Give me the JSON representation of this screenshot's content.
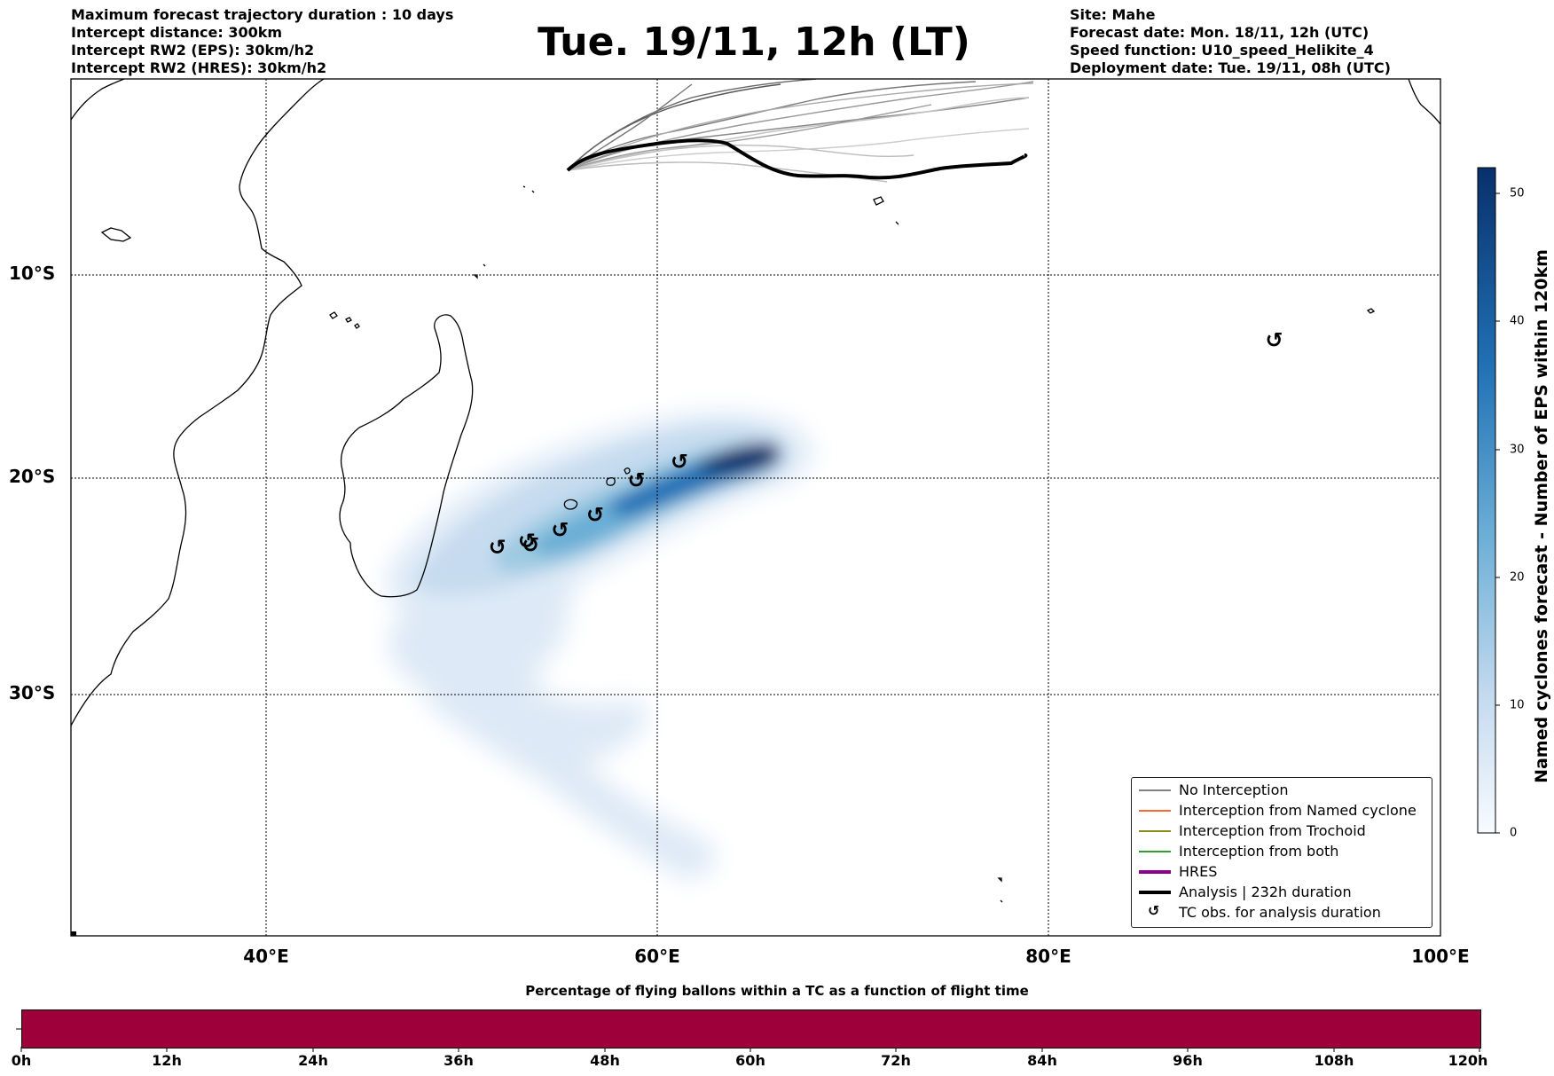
{
  "header_left": [
    "Maximum forecast trajectory duration : 10 days",
    "Intercept distance: 300km",
    "Intercept RW2 (EPS):  30km/h2",
    "Intercept RW2 (HRES): 30km/h2"
  ],
  "title": "Tue. 19/11, 12h (LT)",
  "header_right": [
    "Site: Mahe",
    "Forecast date: Mon. 18/11, 12h (UTC)",
    "Speed function: U10_speed_Helikite_4",
    "Deployment date: Tue. 19/11, 08h (UTC)"
  ],
  "map": {
    "lon_range": [
      30,
      100
    ],
    "lat_range": [
      -44,
      0
    ],
    "lat_labels": [
      "10°S",
      "20°S",
      "30°S"
    ],
    "lon_labels": [
      "40°E",
      "60°E",
      "80°E",
      "100°E"
    ],
    "gridlines": "dotted"
  },
  "legend": {
    "items": [
      {
        "label": "No Interception",
        "color": "#808080"
      },
      {
        "label": "Interception from Named cyclone",
        "color": "#ff6a33"
      },
      {
        "label": "Interception from Trochoid",
        "color": "#8b8b1a"
      },
      {
        "label": "Interception from both",
        "color": "#2ca02c"
      },
      {
        "label": "HRES",
        "color": "#8b008b"
      },
      {
        "label": "Analysis | 232h duration",
        "color": "#000000"
      },
      {
        "label": "TC obs. for analysis duration",
        "icon": "cyclone-symbol-icon"
      }
    ],
    "placement": "lower-right"
  },
  "colorbar": {
    "label": "Named cyclones forecast - Number of EPS within 120km",
    "ticks": [
      "0",
      "10",
      "20",
      "30",
      "40",
      "50"
    ],
    "min": 0,
    "max": 52,
    "colormap": "Blues"
  },
  "bottom_bar": {
    "title": "Percentage of flying ballons within a TC as a function of flight time",
    "ticks": [
      "0h",
      "12h",
      "24h",
      "36h",
      "48h",
      "60h",
      "72h",
      "84h",
      "96h",
      "108h",
      "120h"
    ],
    "color": "#9e003a"
  },
  "tc_obs": [
    {
      "lon": 51.8,
      "lat": -23.2
    },
    {
      "lon": 53.3,
      "lat": -22.9
    },
    {
      "lon": 53.5,
      "lat": -23.1
    },
    {
      "lon": 55.0,
      "lat": -22.4
    },
    {
      "lon": 56.8,
      "lat": -21.7
    },
    {
      "lon": 58.9,
      "lat": -20.1
    },
    {
      "lon": 61.1,
      "lat": -19.2
    },
    {
      "lon": 91.5,
      "lat": -13.2
    }
  ]
}
